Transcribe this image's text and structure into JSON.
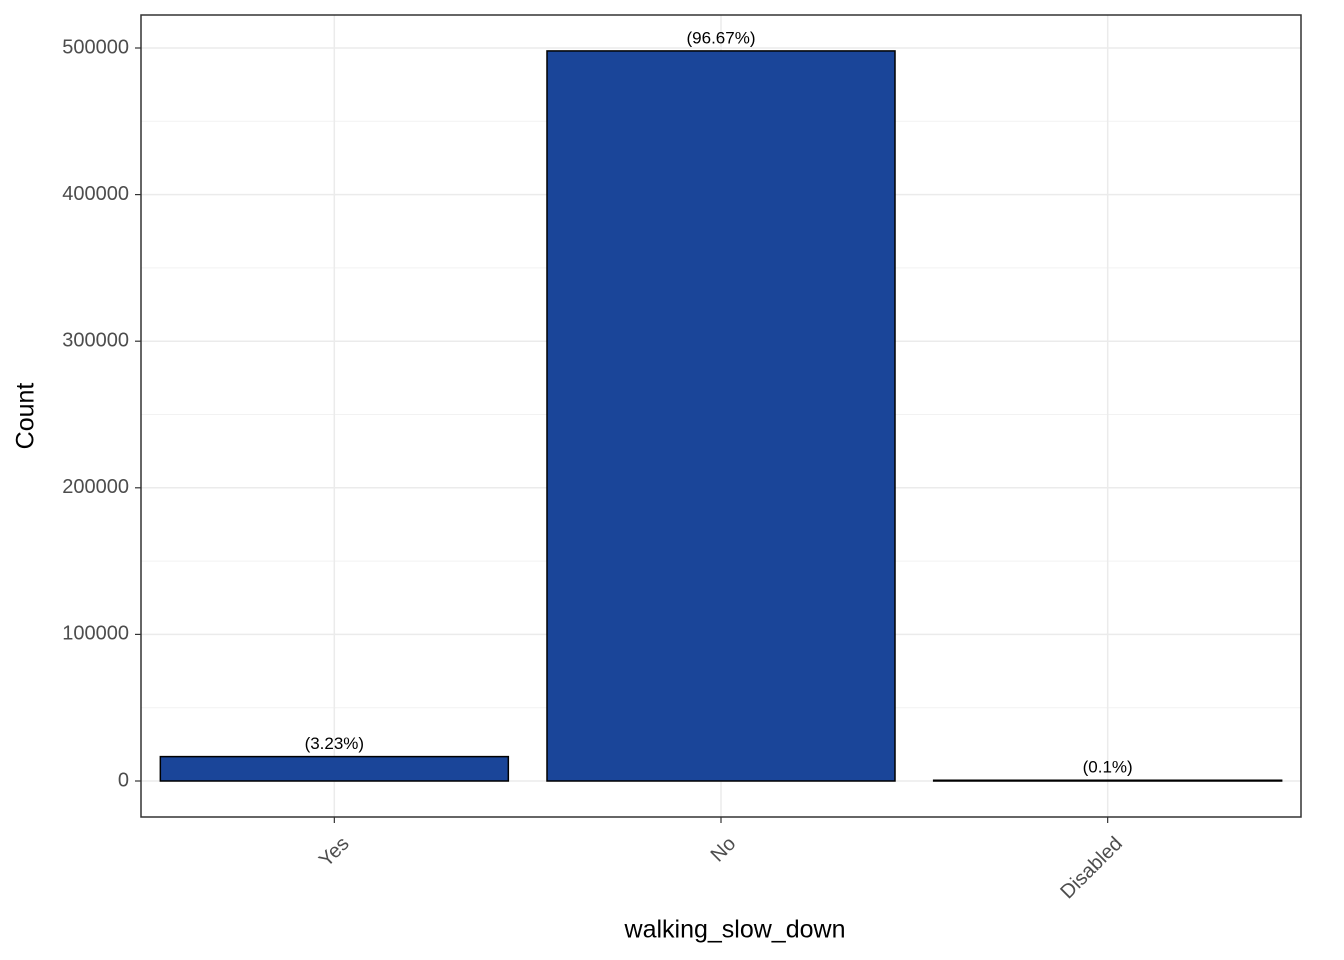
{
  "chart_data": {
    "type": "bar",
    "x_label": "walking_slow_down",
    "y_label": "Count",
    "categories": [
      "Yes",
      "No",
      "Disabled"
    ],
    "values": [
      16635,
      498000,
      515
    ],
    "annotations": [
      "(3.23%)",
      "(96.67%)",
      "(0.1%)"
    ],
    "color": "#1a4599",
    "ylim": [
      -24557,
      522510
    ],
    "yticks": [
      0,
      100000,
      200000,
      300000,
      400000,
      500000
    ],
    "grid": true
  }
}
